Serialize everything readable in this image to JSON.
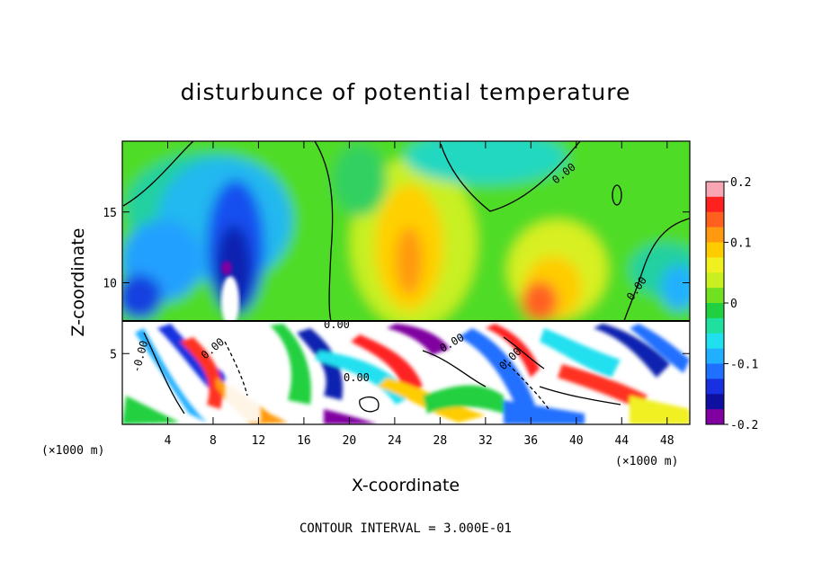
{
  "chart_data": {
    "type": "heatmap",
    "title": "disturbunce of potential temperature",
    "xlabel": "X-coordinate",
    "ylabel": "Z-coordinate",
    "x_unit": "(×1000 m)",
    "y_unit": "(×1000 m)",
    "xlim": [
      0,
      50
    ],
    "ylim": [
      0,
      20
    ],
    "x_ticks": [
      4,
      8,
      12,
      16,
      20,
      24,
      28,
      32,
      36,
      40,
      44,
      48
    ],
    "y_ticks": [
      5,
      10,
      15
    ],
    "colorbar": {
      "range": [
        -0.2,
        0.2
      ],
      "tick_values": [
        0.2,
        0.1,
        0,
        -0.1,
        -0.2
      ],
      "tick_labels": [
        "0.2",
        "0.1",
        "0",
        "-0.1",
        "-0.2"
      ],
      "colors": [
        "#f8a6b4",
        "#ff2020",
        "#ff6020",
        "#ff9a10",
        "#ffcc00",
        "#f0f020",
        "#c8f020",
        "#70e020",
        "#20d040",
        "#20e0a0",
        "#20e0f0",
        "#20b0ff",
        "#2070ff",
        "#1830e0",
        "#1010a0",
        "#8000a0"
      ]
    },
    "contour_labels": [
      "0.00",
      "0.00",
      "0.00",
      "-0.00",
      "0.00",
      "0.00",
      "0.00",
      "0.00"
    ],
    "upper_layer_features": [
      {
        "kind": "min",
        "x": 10,
        "z": 11.5,
        "value": -0.2
      },
      {
        "kind": "min",
        "x": 3,
        "z": 10,
        "value": -0.12
      },
      {
        "kind": "max",
        "x": 26,
        "z": 11,
        "value": 0.12
      },
      {
        "kind": "max",
        "x": 37,
        "z": 8.5,
        "value": 0.15
      },
      {
        "kind": "min",
        "x": 34,
        "z": 18.5,
        "value": -0.08
      },
      {
        "kind": "min",
        "x": 14,
        "z": 18,
        "value": -0.06
      }
    ],
    "layer_boundary_z": 7.3,
    "contour_interval_text": "CONTOUR INTERVAL = 3.000E-01"
  }
}
